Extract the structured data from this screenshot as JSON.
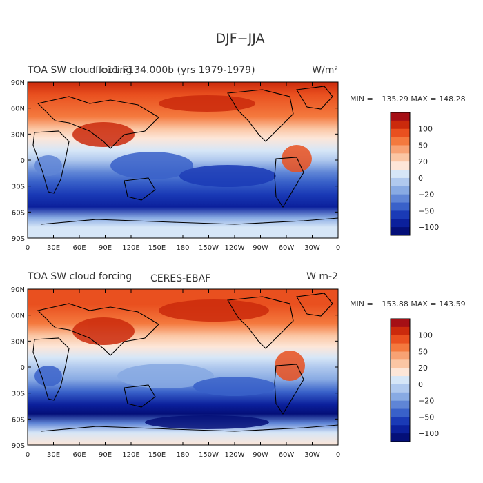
{
  "figure": {
    "title": "DJF−JJA"
  },
  "chart_data": [
    {
      "type": "heatmap",
      "title_left": "TOA SW cloud forcing",
      "title_center": "f.e11.F134.000b (yrs 1979-1979)",
      "units": "W/m²",
      "stats": "MIN = −135.29  MAX = 148.28",
      "min": -135.29,
      "max": 148.28,
      "yticks": [
        "90N",
        "60N",
        "30N",
        "0",
        "30S",
        "60S",
        "90S"
      ],
      "xticks": [
        "0",
        "30E",
        "60E",
        "90E",
        "120E",
        "150E",
        "180",
        "150W",
        "120W",
        "90W",
        "60W",
        "30W",
        "0"
      ],
      "xlim": [
        0,
        360
      ],
      "ylim": [
        -90,
        90
      ],
      "colorbar_labels": [
        "100",
        "50",
        "20",
        "0",
        "−20",
        "−50",
        "−100"
      ],
      "colorbar_colors": [
        "#a50f15",
        "#cb2a0c",
        "#e9501f",
        "#f4793e",
        "#f8a274",
        "#fbc6a4",
        "#fde6d8",
        "#d6e6f7",
        "#b0c9ee",
        "#88aae3",
        "#5f85d6",
        "#3961c9",
        "#1a3ab6",
        "#0b209c",
        "#040f78"
      ]
    },
    {
      "type": "heatmap",
      "title_left": "TOA SW cloud forcing",
      "title_center": "CERES-EBAF",
      "units": "W m-2",
      "stats": "MIN = −153.88  MAX = 143.59",
      "min": -153.88,
      "max": 143.59,
      "yticks": [
        "90N",
        "60N",
        "30N",
        "0",
        "30S",
        "60S",
        "90S"
      ],
      "xticks": [
        "0",
        "30E",
        "60E",
        "90E",
        "120E",
        "150E",
        "180",
        "150W",
        "120W",
        "90W",
        "60W",
        "30W",
        "0"
      ],
      "xlim": [
        0,
        360
      ],
      "ylim": [
        -90,
        90
      ],
      "colorbar_labels": [
        "100",
        "50",
        "20",
        "0",
        "−20",
        "−50",
        "−100"
      ],
      "colorbar_colors": [
        "#a50f15",
        "#cb2a0c",
        "#e9501f",
        "#f4793e",
        "#f8a274",
        "#fbc6a4",
        "#fde6d8",
        "#d6e6f7",
        "#b0c9ee",
        "#88aae3",
        "#5f85d6",
        "#3961c9",
        "#1a3ab6",
        "#0b209c",
        "#040f78"
      ]
    }
  ]
}
